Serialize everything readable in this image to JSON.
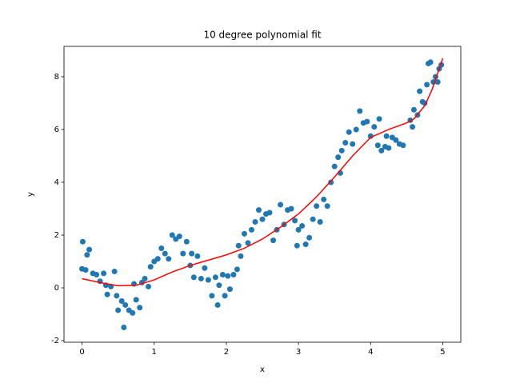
{
  "chart_data": {
    "type": "scatter",
    "title": "10 degree polynomial fit",
    "x_label": "x",
    "y_label": "y",
    "xlim": [
      -0.25,
      5.25
    ],
    "ylim": [
      -2.06,
      9.15
    ],
    "xticks": [
      0,
      1,
      2,
      3,
      4,
      5
    ],
    "yticks": [
      -2,
      0,
      2,
      4,
      6,
      8
    ],
    "series": [
      {
        "type": "scatter",
        "color": "#1f77b4",
        "x": [
          0,
          0.01,
          0.05,
          0.07,
          0.1,
          0.15,
          0.2,
          0.25,
          0.3,
          0.33,
          0.35,
          0.4,
          0.45,
          0.48,
          0.5,
          0.55,
          0.58,
          0.6,
          0.65,
          0.7,
          0.72,
          0.75,
          0.8,
          0.83,
          0.87,
          0.92,
          0.95,
          1.0,
          1.05,
          1.1,
          1.15,
          1.2,
          1.25,
          1.3,
          1.35,
          1.4,
          1.45,
          1.5,
          1.52,
          1.55,
          1.6,
          1.65,
          1.7,
          1.75,
          1.8,
          1.85,
          1.88,
          1.9,
          1.95,
          1.98,
          2.02,
          2.05,
          2.1,
          2.15,
          2.17,
          2.2,
          2.25,
          2.3,
          2.35,
          2.4,
          2.45,
          2.5,
          2.55,
          2.6,
          2.65,
          2.7,
          2.75,
          2.8,
          2.85,
          2.9,
          2.95,
          2.98,
          3.0,
          3.05,
          3.1,
          3.15,
          3.2,
          3.25,
          3.3,
          3.35,
          3.4,
          3.45,
          3.5,
          3.55,
          3.58,
          3.6,
          3.65,
          3.7,
          3.75,
          3.8,
          3.85,
          3.9,
          3.95,
          4.0,
          4.05,
          4.1,
          4.12,
          4.15,
          4.2,
          4.22,
          4.25,
          4.3,
          4.35,
          4.4,
          4.45,
          4.55,
          4.58,
          4.6,
          4.65,
          4.68,
          4.72,
          4.75,
          4.78,
          4.8,
          4.83,
          4.87,
          4.9,
          4.93,
          4.95,
          4.98
        ],
        "values": [
          0.72,
          1.75,
          0.68,
          1.25,
          1.45,
          0.55,
          0.5,
          0.25,
          0.55,
          0.1,
          -0.25,
          0.05,
          0.62,
          -0.3,
          -0.85,
          -0.5,
          -1.5,
          -0.65,
          -0.85,
          -0.95,
          0.15,
          -0.45,
          -0.75,
          0.2,
          0.35,
          0.05,
          0.8,
          1.0,
          1.1,
          1.5,
          1.3,
          1.1,
          2.0,
          1.85,
          1.95,
          1.3,
          1.75,
          0.85,
          1.3,
          0.4,
          1.2,
          0.35,
          0.75,
          0.3,
          -0.3,
          0.4,
          -0.65,
          0.1,
          0.5,
          -0.3,
          0.45,
          -0.05,
          0.5,
          0.7,
          1.6,
          1.2,
          2.05,
          1.7,
          2.2,
          2.5,
          2.95,
          2.6,
          2.8,
          2.85,
          1.8,
          2.2,
          3.15,
          2.4,
          2.95,
          3.0,
          2.55,
          1.6,
          2.2,
          2.35,
          1.65,
          1.9,
          2.6,
          3.1,
          2.5,
          3.35,
          3.1,
          4.0,
          4.6,
          4.95,
          4.35,
          5.2,
          5.5,
          5.9,
          5.45,
          6.0,
          6.7,
          6.25,
          6.3,
          5.75,
          6.1,
          5.4,
          6.4,
          5.2,
          5.35,
          5.75,
          5.3,
          5.7,
          5.6,
          5.45,
          5.4,
          6.35,
          6.1,
          6.75,
          6.55,
          7.45,
          7.05,
          7.0,
          7.7,
          8.5,
          8.55,
          7.8,
          8.0,
          7.8,
          8.3,
          8.45
        ]
      },
      {
        "type": "line",
        "color": "#ff0000",
        "x": [
          0,
          0.25,
          0.5,
          0.75,
          1.0,
          1.25,
          1.5,
          1.75,
          2.0,
          2.25,
          2.5,
          2.75,
          3.0,
          3.25,
          3.5,
          3.75,
          4.0,
          4.25,
          4.5,
          4.6,
          4.75,
          4.85,
          5.0
        ],
        "values": [
          0.35,
          0.2,
          0.08,
          0.1,
          0.3,
          0.6,
          0.85,
          1.05,
          1.25,
          1.5,
          1.85,
          2.3,
          2.8,
          3.45,
          4.2,
          5.0,
          5.7,
          6.0,
          6.25,
          6.4,
          6.9,
          7.5,
          8.7
        ]
      }
    ]
  }
}
